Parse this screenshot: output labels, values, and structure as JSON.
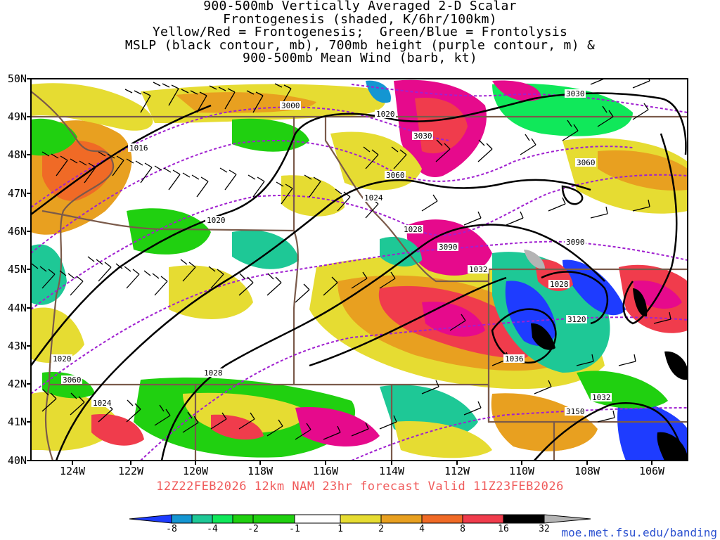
{
  "title": {
    "lines": [
      "900-500mb Vertically Averaged 2-D Scalar",
      "Frontogenesis (shaded, K/6hr/100km)",
      "Yellow/Red = Frontogenesis;  Green/Blue = Frontolysis",
      "MSLP (black contour, mb), 700mb height (purple contour, m) &",
      "900-500mb Mean Wind (barb, kt)"
    ]
  },
  "axes": {
    "lat_labels": [
      "50N",
      "49N",
      "48N",
      "47N",
      "46N",
      "45N",
      "44N",
      "43N",
      "42N",
      "41N",
      "40N"
    ],
    "lon_labels": [
      "124W",
      "122W",
      "120W",
      "118W",
      "116W",
      "114W",
      "112W",
      "110W",
      "108W",
      "106W"
    ]
  },
  "contours": {
    "mslp_labels": [
      "1016",
      "1020",
      "1020",
      "1024",
      "1028",
      "1032",
      "1028",
      "1036",
      "1032",
      "1020",
      "1028",
      "1024"
    ],
    "height_labels": [
      "3000",
      "3030",
      "3030",
      "3060",
      "3060",
      "3090",
      "3090",
      "3120",
      "3150",
      "3060"
    ]
  },
  "valid_line": "12Z22FEB2026 12km NAM 23hr forecast Valid 11Z23FEB2026",
  "colorbar": {
    "labels": [
      "-8",
      "-4",
      "-2",
      "-1",
      "1",
      "2",
      "4",
      "8",
      "16",
      "32"
    ],
    "colors": [
      "#1e3cff",
      "#1496d2",
      "#1ec896",
      "#10e85a",
      "#20d010",
      "#ffffff",
      "#e6dc32",
      "#e8a020",
      "#f06a26",
      "#f03c4c",
      "#e60a8c",
      "#000000",
      "#b4b4b4"
    ]
  },
  "source": "moe.met.fsu.edu/banding"
}
